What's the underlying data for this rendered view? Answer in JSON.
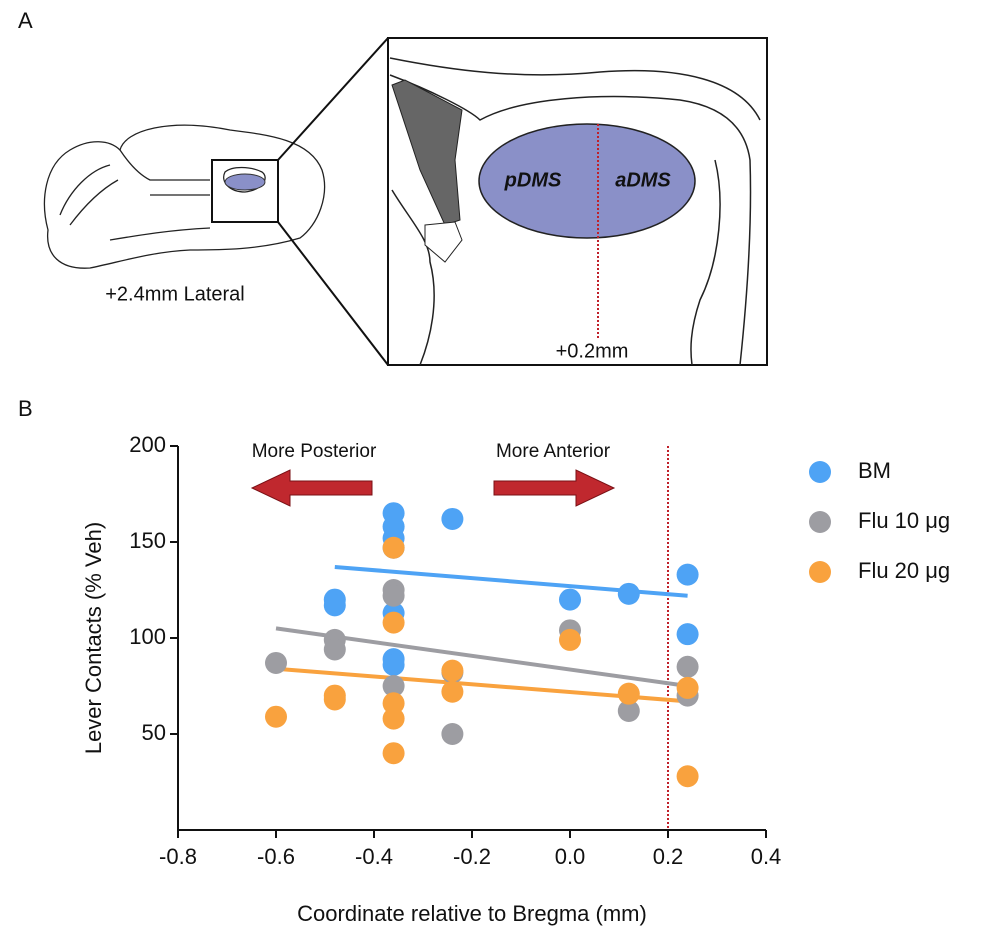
{
  "panel_a": {
    "label": "A",
    "section_label": "+2.4mm Lateral",
    "regions": [
      "pDMS",
      "aDMS"
    ],
    "coordinate": "+0.2mm"
  },
  "chart_data": {
    "type": "scatter",
    "panel_label": "B",
    "x_label": "Coordinate relative to Bregma (mm)",
    "y_label": "Lever Contacts (% Veh)",
    "xlim": [
      -0.8,
      0.4
    ],
    "xticks": [
      -0.8,
      -0.6,
      -0.4,
      -0.2,
      {
        "value": 0.0,
        "label": "0.0"
      },
      0.2,
      0.4
    ],
    "ylim": [
      0,
      200
    ],
    "yticks": [
      50,
      100,
      150,
      200
    ],
    "vline": 0.2,
    "vline_color": "#c0202a",
    "annotations": [
      "More Posterior",
      "More Anterior"
    ],
    "series": [
      {
        "name": "BM",
        "color": "#4ea3f5",
        "x": [
          -0.48,
          -0.48,
          -0.36,
          -0.36,
          -0.36,
          -0.36,
          -0.36,
          -0.36,
          -0.36,
          -0.24,
          0.0,
          0.12,
          0.24,
          0.24
        ],
        "values": [
          120,
          117,
          165,
          158,
          152,
          147,
          113,
          89,
          86,
          162,
          120,
          123,
          133,
          102
        ],
        "trend_x": [
          -0.48,
          0.24
        ],
        "trend_values": [
          137,
          122
        ]
      },
      {
        "name": "Flu 10 μg",
        "color": "#9d9da2",
        "x": [
          -0.6,
          -0.48,
          -0.48,
          -0.36,
          -0.36,
          -0.36,
          -0.24,
          -0.24,
          0.0,
          0.12,
          0.24,
          0.24
        ],
        "values": [
          87,
          99,
          94,
          125,
          122,
          75,
          82,
          50,
          104,
          62,
          85,
          70
        ],
        "trend_x": [
          -0.6,
          0.24
        ],
        "trend_values": [
          105,
          75
        ]
      },
      {
        "name": "Flu 20 μg",
        "color": "#f9a23e",
        "x": [
          -0.6,
          -0.48,
          -0.48,
          -0.36,
          -0.36,
          -0.36,
          -0.36,
          -0.36,
          -0.24,
          -0.24,
          0.0,
          0.12,
          0.24,
          0.24
        ],
        "values": [
          59,
          70,
          68,
          147,
          108,
          66,
          58,
          40,
          83,
          72,
          99,
          71,
          74,
          28
        ],
        "trend_x": [
          -0.6,
          0.24
        ],
        "trend_values": [
          84,
          67
        ]
      }
    ]
  }
}
